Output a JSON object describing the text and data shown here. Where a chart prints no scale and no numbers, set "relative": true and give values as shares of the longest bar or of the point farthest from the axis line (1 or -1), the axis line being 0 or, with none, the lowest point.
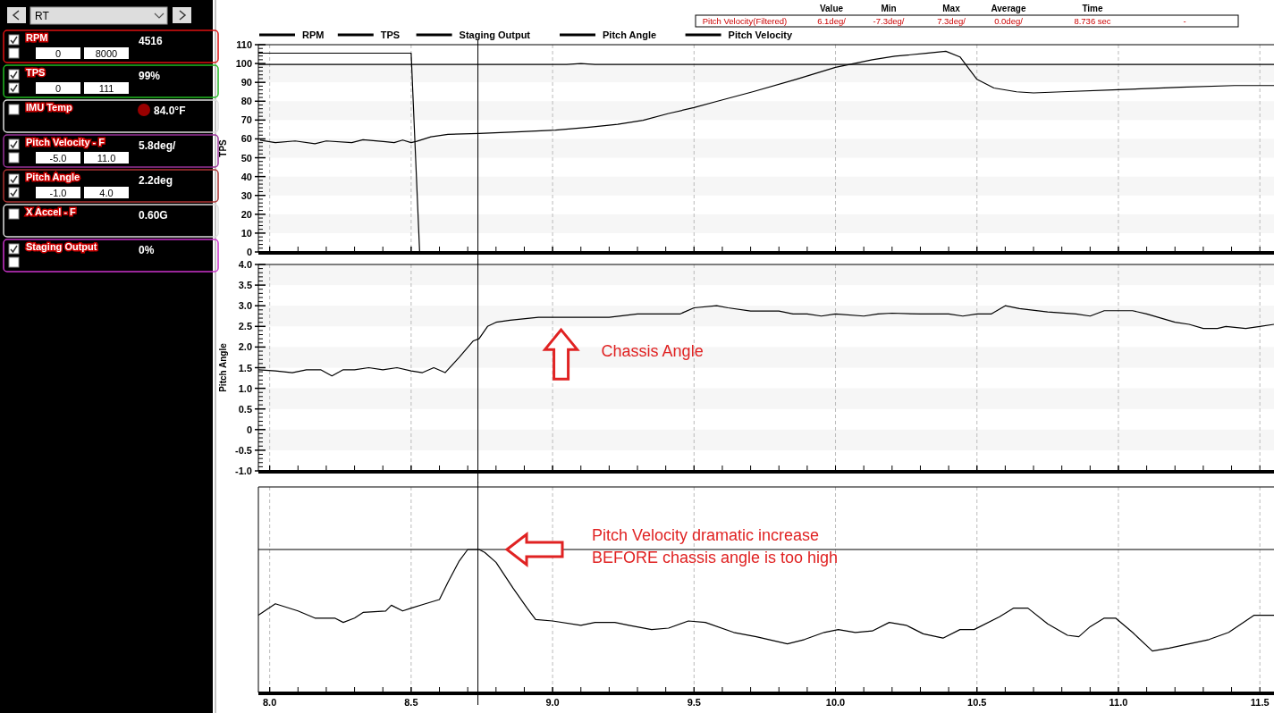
{
  "chart_data": [
    {
      "type": "line",
      "ylabel": "TPS",
      "xlim": [
        7.96,
        11.55
      ],
      "ylim": [
        0,
        110
      ],
      "yticks": [
        0,
        10,
        20,
        30,
        40,
        50,
        60,
        70,
        80,
        90,
        100,
        110
      ],
      "xticks": [
        8,
        8.5,
        9,
        9.5,
        10,
        10.5,
        11,
        11.5
      ],
      "tick_labels": "y",
      "grid": true,
      "legend": "top",
      "ref_lines": [
        {
          "axis": "x",
          "value": 8.736,
          "color": "#000000"
        }
      ],
      "series": [
        {
          "name": "RPM",
          "color": "#000000",
          "x": [
            7.966,
            8.02,
            8.09,
            8.16,
            8.2,
            8.29,
            8.33,
            8.41,
            8.44,
            8.47,
            8.5,
            8.52,
            8.57,
            8.63,
            8.74,
            8.89,
            9.01,
            9.13,
            9.23,
            9.32,
            9.41,
            9.5,
            9.58,
            9.71,
            9.86,
            10.0,
            10.13,
            10.21,
            10.32,
            10.39,
            10.44,
            10.5,
            10.56,
            10.64,
            10.7,
            10.8,
            11.0,
            11.22,
            11.41,
            11.55
          ],
          "values": [
            59.3,
            58,
            58.9,
            57.4,
            58.9,
            58,
            59.6,
            58.5,
            58,
            59.4,
            58,
            58.7,
            61.1,
            62.4,
            62.9,
            63.8,
            64.7,
            66.2,
            67.7,
            69.9,
            73.5,
            76.6,
            79.9,
            85.1,
            91.6,
            98,
            102,
            103.9,
            105.4,
            106.5,
            103.5,
            91.6,
            87,
            85,
            84.4,
            85,
            86.1,
            87.4,
            88.3,
            88.3
          ]
        },
        {
          "name": "TPS",
          "color": "#000000",
          "x": [
            7.96,
            9.05,
            9.1,
            9.15,
            11.55
          ],
          "values": [
            99.5,
            99.5,
            100,
            99.5,
            99.5
          ]
        },
        {
          "name": "Staging Output",
          "color": "#000000",
          "x": [
            7.96,
            8.5,
            8.53,
            11.55
          ],
          "values": [
            105.5,
            105.5,
            0,
            0
          ]
        }
      ]
    },
    {
      "type": "line",
      "ylabel": "Pitch Angle",
      "xlim": [
        7.96,
        11.55
      ],
      "ylim": [
        -1,
        4
      ],
      "yticks": [
        {
          "value": -1,
          "label": "-1.0"
        },
        -0.5,
        0,
        0.5,
        {
          "value": 1,
          "label": "1.0"
        },
        1.5,
        {
          "value": 2,
          "label": "2.0"
        },
        2.5,
        {
          "value": 3,
          "label": "3.0"
        },
        3.5,
        {
          "value": 4,
          "label": "4.0"
        }
      ],
      "xticks": [
        8,
        8.5,
        9,
        9.5,
        10,
        10.5,
        11,
        11.5
      ],
      "tick_labels": "y",
      "grid": true,
      "ref_lines": [
        {
          "axis": "x",
          "value": 8.736,
          "color": "#000000"
        }
      ],
      "annotations": [
        {
          "text": "Chassis Angle",
          "x": 9.03,
          "y": 2.72
        }
      ],
      "series": [
        {
          "name": "Pitch Angle",
          "color": "#000000",
          "x": [
            7.96,
            8.02,
            8.08,
            8.13,
            8.18,
            8.22,
            8.26,
            8.3,
            8.35,
            8.4,
            8.45,
            8.5,
            8.54,
            8.58,
            8.62,
            8.67,
            8.72,
            8.74,
            8.77,
            8.8,
            8.85,
            8.95,
            9.2,
            9.3,
            9.45,
            9.5,
            9.58,
            9.62,
            9.7,
            9.8,
            9.85,
            9.9,
            9.95,
            10.0,
            10.1,
            10.15,
            10.2,
            10.3,
            10.4,
            10.45,
            10.5,
            10.55,
            10.6,
            10.65,
            10.75,
            10.85,
            10.9,
            10.95,
            11.05,
            11.1,
            11.2,
            11.25,
            11.3,
            11.35,
            11.38,
            11.45,
            11.5,
            11.55
          ],
          "values": [
            1.45,
            1.42,
            1.38,
            1.45,
            1.45,
            1.3,
            1.45,
            1.45,
            1.5,
            1.45,
            1.5,
            1.42,
            1.38,
            1.5,
            1.38,
            1.75,
            2.15,
            2.2,
            2.5,
            2.6,
            2.65,
            2.72,
            2.72,
            2.8,
            2.8,
            2.95,
            3.0,
            2.95,
            2.87,
            2.87,
            2.8,
            2.8,
            2.75,
            2.8,
            2.75,
            2.8,
            2.82,
            2.8,
            2.8,
            2.75,
            2.8,
            2.8,
            3.0,
            2.93,
            2.85,
            2.8,
            2.75,
            2.88,
            2.88,
            2.8,
            2.6,
            2.55,
            2.45,
            2.45,
            2.5,
            2.45,
            2.5,
            2.55
          ]
        }
      ]
    },
    {
      "type": "line",
      "relative": true,
      "xlim": [
        7.96,
        11.55
      ],
      "xticks": [
        {
          "value": 8,
          "label": "8.0"
        },
        {
          "value": 8.5,
          "label": "8.5"
        },
        {
          "value": 9,
          "label": "9.0"
        },
        {
          "value": 9.5,
          "label": "9.5"
        },
        {
          "value": 10,
          "label": "10.0"
        },
        {
          "value": 10.5,
          "label": "10.5"
        },
        {
          "value": 11,
          "label": "11.0"
        },
        {
          "value": 11.5,
          "label": "11.5"
        }
      ],
      "tick_labels": "x",
      "grid": true,
      "ref_lines": [
        {
          "axis": "x",
          "value": 8.736,
          "color": "#000000"
        },
        {
          "axis": "y",
          "value": 1,
          "color": "#000000"
        }
      ],
      "annotations": [
        "Pitch Velocity dramatic increase BEFORE chassis angle is too high"
      ],
      "series": [
        {
          "name": "Pitch Velocity",
          "color": "#000000",
          "x": [
            7.96,
            8.02,
            8.1,
            8.16,
            8.23,
            8.26,
            8.3,
            8.33,
            8.41,
            8.43,
            8.47,
            8.5,
            8.55,
            8.6,
            8.63,
            8.67,
            8.7,
            8.74,
            8.76,
            8.8,
            8.86,
            8.91,
            8.94,
            9.0,
            9.1,
            9.15,
            9.22,
            9.27,
            9.35,
            9.41,
            9.48,
            9.54,
            9.64,
            9.72,
            9.83,
            9.89,
            9.96,
            10.01,
            10.07,
            10.13,
            10.19,
            10.25,
            10.31,
            10.38,
            10.44,
            10.49,
            10.58,
            10.63,
            10.68,
            10.75,
            10.82,
            10.86,
            10.9,
            10.95,
            10.99,
            11.05,
            11.12,
            11.18,
            11.25,
            11.32,
            11.39,
            11.48,
            11.53,
            11.55
          ],
          "values": [
            0.54,
            0.62,
            0.57,
            0.52,
            0.52,
            0.49,
            0.52,
            0.56,
            0.57,
            0.61,
            0.57,
            0.59,
            0.62,
            0.65,
            0.77,
            0.92,
            1,
            1,
            0.98,
            0.91,
            0.73,
            0.59,
            0.51,
            0.5,
            0.47,
            0.49,
            0.49,
            0.47,
            0.44,
            0.45,
            0.5,
            0.49,
            0.42,
            0.39,
            0.34,
            0.37,
            0.42,
            0.44,
            0.42,
            0.43,
            0.49,
            0.47,
            0.41,
            0.38,
            0.44,
            0.44,
            0.53,
            0.59,
            0.59,
            0.48,
            0.4,
            0.39,
            0.46,
            0.52,
            0.52,
            0.42,
            0.29,
            0.31,
            0.34,
            0.37,
            0.42,
            0.54,
            0.54,
            0.54
          ]
        }
      ]
    },
    {
      "type": "other",
      "annotations": [
        "RT",
        "RPM",
        "4516",
        "0",
        "8000",
        "TPS",
        "99%",
        "0",
        "111",
        "IMU Temp",
        "84.0°F",
        "Pitch Velocity - F",
        "5.8deg/",
        "-5.0",
        "11.0",
        "Pitch Angle",
        "2.2deg",
        "-1.0",
        "4.0",
        "X Accel - F",
        "0.60G",
        "Staging Output",
        "0%"
      ]
    },
    {
      "type": "other",
      "annotations": [
        "Value",
        "Min",
        "Max",
        "Average",
        "Time",
        "Pitch Velocity(Filtered)",
        "6.1deg/",
        "-7.3deg/",
        "7.3deg/",
        "0.0deg/",
        "8.736 sec",
        "-"
      ]
    }
  ]
}
